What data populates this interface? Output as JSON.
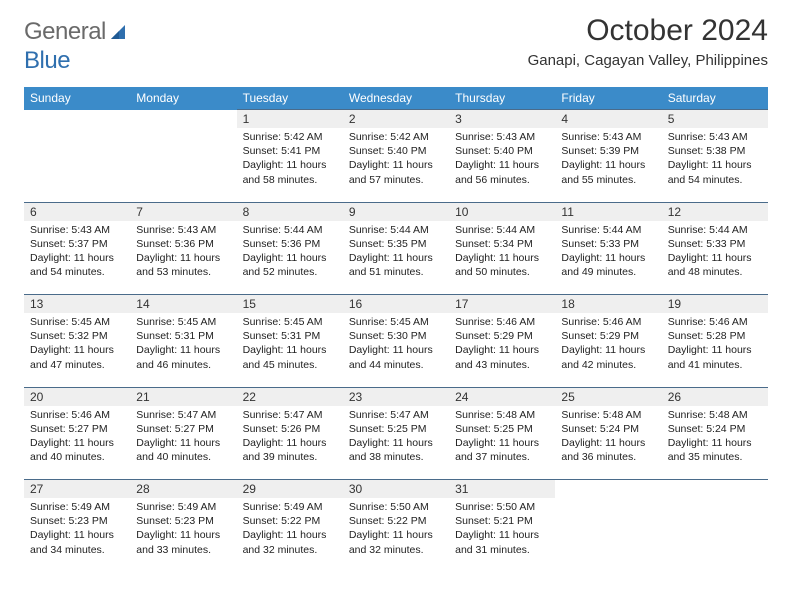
{
  "brand": {
    "word1": "General",
    "word2": "Blue",
    "text_color": "#6a6a6a",
    "accent_color": "#2f6fae"
  },
  "title": "October 2024",
  "location": "Ganapi, Cagayan Valley, Philippines",
  "header_bg": "#3b8bc9",
  "header_fg": "#ffffff",
  "daynum_bg": "#efefef",
  "rule_color": "#4a6b8a",
  "font_size_title": 30,
  "font_size_subtitle": 15,
  "font_size_header": 12,
  "font_size_cell": 10.5,
  "weekdays": [
    "Sunday",
    "Monday",
    "Tuesday",
    "Wednesday",
    "Thursday",
    "Friday",
    "Saturday"
  ],
  "weeks": [
    [
      null,
      null,
      {
        "n": "1",
        "sr": "5:42 AM",
        "ss": "5:41 PM",
        "dl": "11 hours and 58 minutes."
      },
      {
        "n": "2",
        "sr": "5:42 AM",
        "ss": "5:40 PM",
        "dl": "11 hours and 57 minutes."
      },
      {
        "n": "3",
        "sr": "5:43 AM",
        "ss": "5:40 PM",
        "dl": "11 hours and 56 minutes."
      },
      {
        "n": "4",
        "sr": "5:43 AM",
        "ss": "5:39 PM",
        "dl": "11 hours and 55 minutes."
      },
      {
        "n": "5",
        "sr": "5:43 AM",
        "ss": "5:38 PM",
        "dl": "11 hours and 54 minutes."
      }
    ],
    [
      {
        "n": "6",
        "sr": "5:43 AM",
        "ss": "5:37 PM",
        "dl": "11 hours and 54 minutes."
      },
      {
        "n": "7",
        "sr": "5:43 AM",
        "ss": "5:36 PM",
        "dl": "11 hours and 53 minutes."
      },
      {
        "n": "8",
        "sr": "5:44 AM",
        "ss": "5:36 PM",
        "dl": "11 hours and 52 minutes."
      },
      {
        "n": "9",
        "sr": "5:44 AM",
        "ss": "5:35 PM",
        "dl": "11 hours and 51 minutes."
      },
      {
        "n": "10",
        "sr": "5:44 AM",
        "ss": "5:34 PM",
        "dl": "11 hours and 50 minutes."
      },
      {
        "n": "11",
        "sr": "5:44 AM",
        "ss": "5:33 PM",
        "dl": "11 hours and 49 minutes."
      },
      {
        "n": "12",
        "sr": "5:44 AM",
        "ss": "5:33 PM",
        "dl": "11 hours and 48 minutes."
      }
    ],
    [
      {
        "n": "13",
        "sr": "5:45 AM",
        "ss": "5:32 PM",
        "dl": "11 hours and 47 minutes."
      },
      {
        "n": "14",
        "sr": "5:45 AM",
        "ss": "5:31 PM",
        "dl": "11 hours and 46 minutes."
      },
      {
        "n": "15",
        "sr": "5:45 AM",
        "ss": "5:31 PM",
        "dl": "11 hours and 45 minutes."
      },
      {
        "n": "16",
        "sr": "5:45 AM",
        "ss": "5:30 PM",
        "dl": "11 hours and 44 minutes."
      },
      {
        "n": "17",
        "sr": "5:46 AM",
        "ss": "5:29 PM",
        "dl": "11 hours and 43 minutes."
      },
      {
        "n": "18",
        "sr": "5:46 AM",
        "ss": "5:29 PM",
        "dl": "11 hours and 42 minutes."
      },
      {
        "n": "19",
        "sr": "5:46 AM",
        "ss": "5:28 PM",
        "dl": "11 hours and 41 minutes."
      }
    ],
    [
      {
        "n": "20",
        "sr": "5:46 AM",
        "ss": "5:27 PM",
        "dl": "11 hours and 40 minutes."
      },
      {
        "n": "21",
        "sr": "5:47 AM",
        "ss": "5:27 PM",
        "dl": "11 hours and 40 minutes."
      },
      {
        "n": "22",
        "sr": "5:47 AM",
        "ss": "5:26 PM",
        "dl": "11 hours and 39 minutes."
      },
      {
        "n": "23",
        "sr": "5:47 AM",
        "ss": "5:25 PM",
        "dl": "11 hours and 38 minutes."
      },
      {
        "n": "24",
        "sr": "5:48 AM",
        "ss": "5:25 PM",
        "dl": "11 hours and 37 minutes."
      },
      {
        "n": "25",
        "sr": "5:48 AM",
        "ss": "5:24 PM",
        "dl": "11 hours and 36 minutes."
      },
      {
        "n": "26",
        "sr": "5:48 AM",
        "ss": "5:24 PM",
        "dl": "11 hours and 35 minutes."
      }
    ],
    [
      {
        "n": "27",
        "sr": "5:49 AM",
        "ss": "5:23 PM",
        "dl": "11 hours and 34 minutes."
      },
      {
        "n": "28",
        "sr": "5:49 AM",
        "ss": "5:23 PM",
        "dl": "11 hours and 33 minutes."
      },
      {
        "n": "29",
        "sr": "5:49 AM",
        "ss": "5:22 PM",
        "dl": "11 hours and 32 minutes."
      },
      {
        "n": "30",
        "sr": "5:50 AM",
        "ss": "5:22 PM",
        "dl": "11 hours and 32 minutes."
      },
      {
        "n": "31",
        "sr": "5:50 AM",
        "ss": "5:21 PM",
        "dl": "11 hours and 31 minutes."
      },
      null,
      null
    ]
  ]
}
